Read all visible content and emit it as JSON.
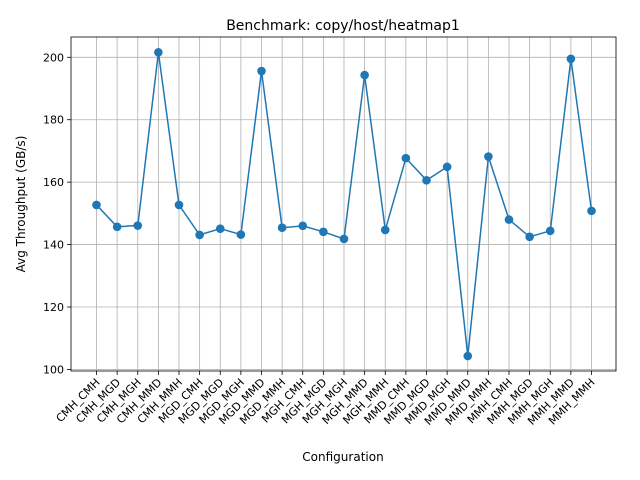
{
  "chart_data": {
    "type": "line",
    "title": "Benchmark: copy/host/heatmap1",
    "xlabel": "Configuration",
    "ylabel": "Avg Throughput (GB/s)",
    "ylim": [
      99.5,
      206.5
    ],
    "yticks": [
      100,
      120,
      140,
      160,
      180,
      200
    ],
    "grid": true,
    "categories": [
      "CMH_CMH",
      "CMH_MGD",
      "CMH_MGH",
      "CMH_MMD",
      "CMH_MMH",
      "MGD_CMH",
      "MGD_MGD",
      "MGD_MGH",
      "MGD_MMD",
      "MGD_MMH",
      "MGH_CMH",
      "MGH_MGD",
      "MGH_MGH",
      "MGH_MMD",
      "MGH_MMH",
      "MMD_CMH",
      "MMD_MGD",
      "MMD_MGH",
      "MMD_MMD",
      "MMD_MMH",
      "MMH_CMH",
      "MMH_MGD",
      "MMH_MGH",
      "MMH_MMD",
      "MMH_MMH"
    ],
    "values": [
      152.7,
      145.7,
      146.1,
      201.6,
      152.7,
      143.1,
      145.1,
      143.2,
      195.6,
      145.4,
      146.0,
      144.1,
      141.8,
      194.3,
      144.7,
      167.7,
      160.6,
      164.9,
      104.3,
      168.2,
      148.0,
      142.5,
      144.4,
      199.5,
      150.8
    ],
    "color": "#1f77b4"
  }
}
